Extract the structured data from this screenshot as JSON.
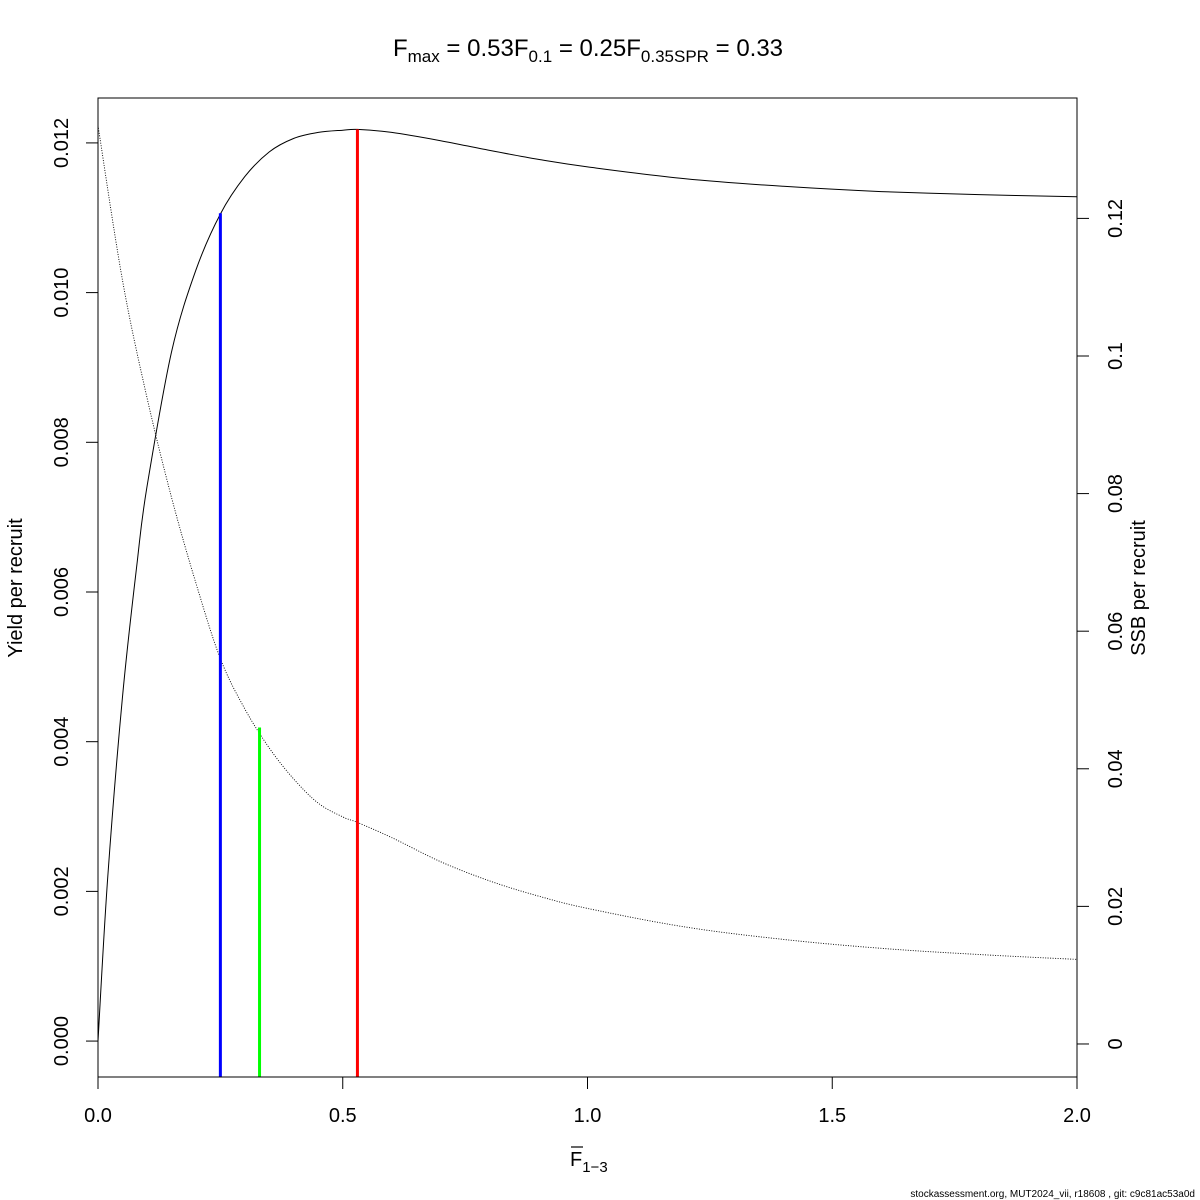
{
  "chart_data": {
    "type": "line",
    "title": {
      "parts": [
        {
          "label": "F",
          "sub": "max",
          "value": "0.53"
        },
        {
          "label": "F",
          "sub": "0.1",
          "value": "0.25"
        },
        {
          "label": "F",
          "sub": "0.35SPR",
          "value": "0.33"
        }
      ]
    },
    "xlabel": {
      "main": "F",
      "sub": "1−3"
    },
    "ylabel_left": "Yield per recruit",
    "ylabel_right": "SSB per recruit",
    "xlim": [
      0,
      2
    ],
    "ylim_left": [
      -0.00048,
      0.0126
    ],
    "ylim_right": [
      -0.0048,
      0.1375
    ],
    "x_ticks": [
      "0.0",
      "0.5",
      "1.0",
      "1.5",
      "2.0"
    ],
    "x_tick_values": [
      0,
      0.5,
      1.0,
      1.5,
      2.0
    ],
    "y_left_ticks": [
      "0.000",
      "0.002",
      "0.004",
      "0.006",
      "0.008",
      "0.010",
      "0.012"
    ],
    "y_left_tick_values": [
      0,
      0.002,
      0.004,
      0.006,
      0.008,
      0.01,
      0.012
    ],
    "y_right_ticks": [
      "0",
      "0.02",
      "0.04",
      "0.06",
      "0.08",
      "0.1",
      "0.12"
    ],
    "y_right_tick_values": [
      0,
      0.02,
      0.04,
      0.06,
      0.08,
      0.1,
      0.12
    ],
    "series": [
      {
        "axis": "left",
        "style": "solid",
        "color": "#000000",
        "x": [
          0,
          0.02,
          0.05,
          0.08,
          0.1,
          0.15,
          0.2,
          0.25,
          0.3,
          0.35,
          0.4,
          0.45,
          0.5,
          0.53,
          0.6,
          0.7,
          0.8,
          0.9,
          1.0,
          1.2,
          1.4,
          1.6,
          1.8,
          2.0
        ],
        "y": [
          0,
          0.0022,
          0.0046,
          0.0064,
          0.0074,
          0.0092,
          0.0103,
          0.01105,
          0.01155,
          0.01188,
          0.01206,
          0.01214,
          0.01217,
          0.01218,
          0.01214,
          0.01203,
          0.0119,
          0.01178,
          0.01168,
          0.01152,
          0.01142,
          0.01135,
          0.01131,
          0.01128
        ]
      },
      {
        "axis": "right",
        "style": "dotted",
        "color": "#000000",
        "x": [
          0,
          0.05,
          0.1,
          0.15,
          0.2,
          0.25,
          0.3,
          0.35,
          0.4,
          0.45,
          0.5,
          0.53,
          0.6,
          0.7,
          0.8,
          0.9,
          1.0,
          1.2,
          1.4,
          1.6,
          1.8,
          2.0
        ],
        "y": [
          0.1335,
          0.111,
          0.094,
          0.0795,
          0.067,
          0.056,
          0.0487,
          0.043,
          0.0385,
          0.035,
          0.033,
          0.0322,
          0.03,
          0.0265,
          0.0237,
          0.0215,
          0.0197,
          0.017,
          0.0152,
          0.0139,
          0.013,
          0.0123
        ]
      }
    ],
    "reference_lines": [
      {
        "x": 0.25,
        "axis": "left",
        "y_top": 0.01106,
        "color": "#0000ff"
      },
      {
        "x": 0.33,
        "axis": "left",
        "y_top": 0.00419,
        "color": "#00ff00"
      },
      {
        "x": 0.53,
        "axis": "left",
        "y_top": 0.01218,
        "color": "#ff0000"
      }
    ]
  },
  "footer": "stockassessment.org, MUT2024_vii, r18608 , git: c9c81ac53a0d"
}
